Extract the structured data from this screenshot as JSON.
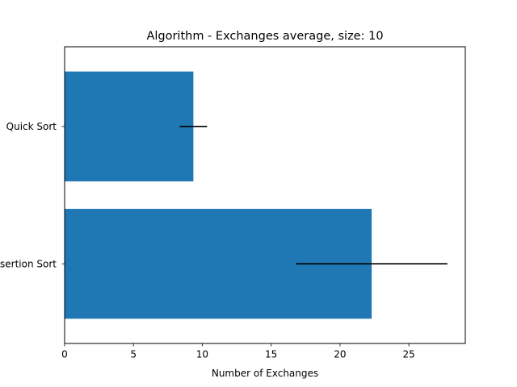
{
  "chart_data": {
    "type": "bar",
    "orientation": "horizontal",
    "title": "Algorithm - Exchanges average, size: 10",
    "xlabel": "Number of Exchanges",
    "ylabel": "",
    "categories": [
      "Insertion Sort",
      "Quick Sort"
    ],
    "values": [
      22.3,
      9.35
    ],
    "error": [
      5.5,
      1.0
    ],
    "xlim": [
      0,
      29.1
    ],
    "xticks": [
      0,
      5,
      10,
      15,
      20,
      25
    ],
    "grid": false,
    "legend": "none",
    "colors": {
      "bar": "#1f77b4",
      "errorbar": "#000000"
    }
  }
}
